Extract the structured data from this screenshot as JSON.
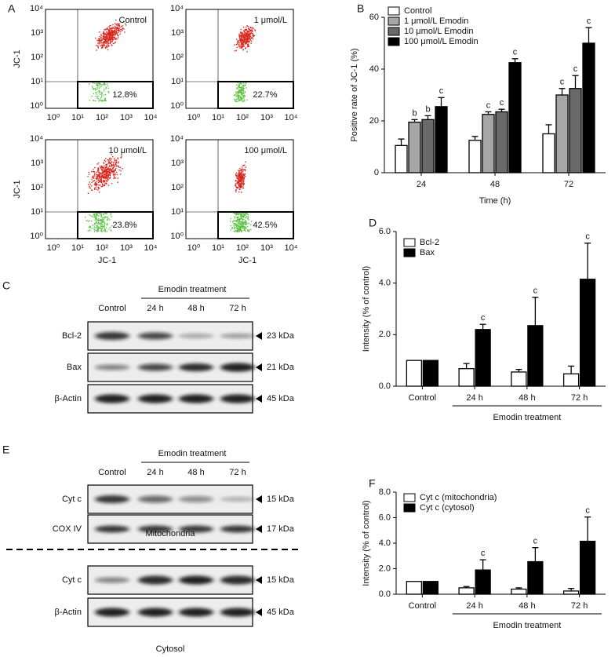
{
  "panels": {
    "A": {
      "label": "A",
      "ticks": [
        "10⁰",
        "10¹",
        "10²",
        "10³",
        "10⁴"
      ],
      "axis_label": "JC-1",
      "plots": [
        {
          "title": "Control",
          "percent": "12.8%"
        },
        {
          "title": "1 μmol/L",
          "percent": "22.7%"
        },
        {
          "title": "10 μmol/L",
          "percent": "23.8%"
        },
        {
          "title": "100 μmol/L",
          "percent": "42.5%"
        }
      ]
    },
    "C": {
      "label": "C",
      "treatment": "Emodin treatment",
      "lanes": [
        "Control",
        "24 h",
        "48 h",
        "72 h"
      ],
      "rows": [
        {
          "name": "Bcl-2",
          "size": "23 kDa"
        },
        {
          "name": "Bax",
          "size": "21 kDa"
        },
        {
          "name": "β-Actin",
          "size": "45 kDa"
        }
      ]
    },
    "E": {
      "label": "E",
      "treatment": "Emodin treatment",
      "lanes": [
        "Control",
        "24 h",
        "48 h",
        "72 h"
      ],
      "sections": [
        {
          "rows": [
            {
              "name": "Cyt c",
              "size": "15 kDa"
            },
            {
              "name": "COX IV",
              "size": "17 kDa"
            }
          ],
          "caption": "Mitochondria"
        },
        {
          "rows": [
            {
              "name": "Cyt c",
              "size": "15 kDa"
            },
            {
              "name": "β-Actin",
              "size": "45 kDa"
            }
          ],
          "caption": "Cytosol"
        }
      ]
    }
  },
  "chart_data": [
    {
      "type": "bar",
      "panel": "B",
      "categories": [
        "24",
        "48",
        "72"
      ],
      "xlabel": "Time (h)",
      "ylabel": "Positive rate of JC-1 (%)",
      "ylim": [
        0,
        60
      ],
      "yticks": [
        0,
        20,
        40,
        60
      ],
      "series": [
        {
          "name": "Control",
          "color": "#ffffff",
          "values": [
            10.5,
            12.5,
            15
          ],
          "errors": [
            2.5,
            1.5,
            3.5
          ]
        },
        {
          "name": "1 μmol/L Emodin",
          "color": "#a6a6a6",
          "values": [
            19.5,
            22.5,
            30
          ],
          "errors": [
            1,
            1,
            2.5
          ],
          "annotations": [
            "b",
            "c",
            "c"
          ]
        },
        {
          "name": "10 μmol/L Emodin",
          "color": "#6a6a6a",
          "values": [
            20.5,
            23.5,
            32.5
          ],
          "errors": [
            1.5,
            1,
            5
          ],
          "annotations": [
            "b",
            "c",
            "c"
          ]
        },
        {
          "name": "100 μmol/L Emodin",
          "color": "#000000",
          "values": [
            25.5,
            42.5,
            50
          ],
          "errors": [
            3.5,
            1.5,
            6
          ],
          "annotations": [
            "c",
            "c",
            "c"
          ]
        }
      ]
    },
    {
      "type": "bar",
      "panel": "D",
      "categories": [
        "Control",
        "24 h",
        "48 h",
        "72 h"
      ],
      "group_label": "Emodin treatment",
      "ylabel": "Intensity (% of control)",
      "ylim": [
        0,
        6
      ],
      "yticks": [
        {
          "value": 0,
          "label": "0.0"
        },
        {
          "value": 2,
          "label": "2.0"
        },
        {
          "value": 4,
          "label": "4.0"
        },
        {
          "value": 6,
          "label": "6.0"
        }
      ],
      "series": [
        {
          "name": "Bcl-2",
          "color": "#ffffff",
          "values": [
            1.0,
            0.68,
            0.55,
            0.48
          ],
          "errors": [
            null,
            0.2,
            0.1,
            0.3
          ]
        },
        {
          "name": "Bax",
          "color": "#000000",
          "values": [
            1.0,
            2.2,
            2.35,
            4.15
          ],
          "errors": [
            null,
            0.2,
            1.1,
            1.4
          ],
          "annotations": [
            null,
            "c",
            "c",
            "c"
          ]
        }
      ]
    },
    {
      "type": "bar",
      "panel": "F",
      "categories": [
        "Control",
        "24 h",
        "48 h",
        "72 h"
      ],
      "group_label": "Emodin treatment",
      "ylabel": "Intensity (% of control)",
      "ylim": [
        0,
        8
      ],
      "yticks": [
        {
          "value": 0,
          "label": "0.0"
        },
        {
          "value": 2,
          "label": "2.0"
        },
        {
          "value": 4,
          "label": "4.0"
        },
        {
          "value": 6,
          "label": "6.0"
        },
        {
          "value": 8,
          "label": "8.0"
        }
      ],
      "series": [
        {
          "name": "Cyt c (mitochondria)",
          "color": "#ffffff",
          "values": [
            1.0,
            0.5,
            0.4,
            0.25
          ],
          "errors": [
            null,
            0.1,
            0.1,
            0.2
          ]
        },
        {
          "name": "Cyt c (cytosol)",
          "color": "#000000",
          "values": [
            1.0,
            1.9,
            2.55,
            4.15
          ],
          "errors": [
            null,
            0.8,
            1.1,
            1.9
          ],
          "annotations": [
            null,
            "c",
            "c",
            "c"
          ]
        }
      ]
    }
  ]
}
